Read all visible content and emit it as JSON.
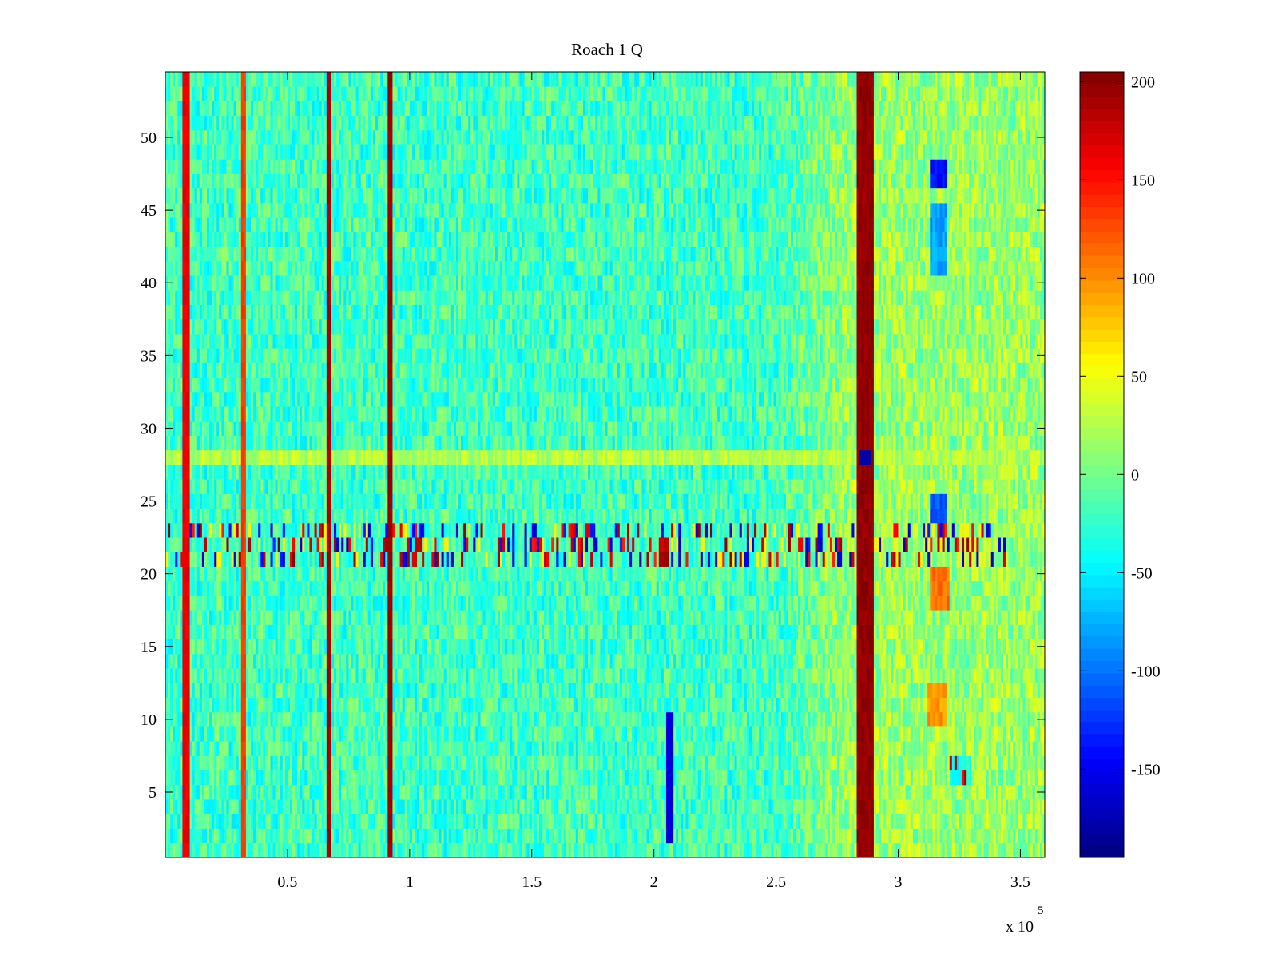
{
  "chart_data": {
    "type": "heatmap",
    "title": "Roach 1 Q",
    "xlabel": "",
    "ylabel": "",
    "x_exponent_label": "x 10",
    "x_exponent": "5",
    "xlim": [
      0,
      360000
    ],
    "ylim": [
      0.5,
      54.5
    ],
    "n_rows": 54,
    "n_columns": 360,
    "x_ticks": [
      50000,
      100000,
      150000,
      200000,
      250000,
      300000,
      350000
    ],
    "x_tick_labels": [
      "0.5",
      "1",
      "1.5",
      "2",
      "2.5",
      "3",
      "3.5"
    ],
    "y_ticks": [
      5,
      10,
      15,
      20,
      25,
      30,
      35,
      40,
      45,
      50
    ],
    "y_tick_labels": [
      "5",
      "10",
      "15",
      "20",
      "25",
      "30",
      "35",
      "40",
      "45",
      "50"
    ],
    "colorbar": {
      "colormap": "jet",
      "range": [
        -195,
        205
      ],
      "ticks": [
        200,
        150,
        100,
        50,
        0,
        -50,
        -100,
        -150
      ],
      "tick_labels": [
        "200",
        "150",
        "100",
        "50",
        "0",
        "-50",
        "-100",
        "-150"
      ]
    },
    "background_level": -20,
    "right_region_level": 15,
    "right_region_start_x": 250000,
    "vertical_bands": [
      {
        "x_start": 8000,
        "x_end": 9000,
        "value": 170
      },
      {
        "x_start": 31500,
        "x_end": 32500,
        "value": 140
      },
      {
        "x_start": 66500,
        "x_end": 67500,
        "value": 195
      },
      {
        "x_start": 91500,
        "x_end": 92500,
        "value": 200
      },
      {
        "x_start": 284000,
        "x_end": 289000,
        "value": 205
      }
    ],
    "horizontal_bands": [
      {
        "row_start": 28,
        "row_end": 28,
        "x_start": 0,
        "x_end": 360000,
        "value": 25
      },
      {
        "row_start": 21,
        "row_end": 23,
        "x_start": 0,
        "x_end": 345000,
        "value": "striped"
      }
    ],
    "patches": [
      {
        "row_start": 47,
        "row_end": 48,
        "x_start": 313000,
        "x_end": 320000,
        "value": -140
      },
      {
        "row_start": 41,
        "row_end": 45,
        "x_start": 313000,
        "x_end": 320000,
        "value": -80
      },
      {
        "row_start": 28,
        "row_end": 28,
        "x_start": 284000,
        "x_end": 289000,
        "value": -180
      },
      {
        "row_start": 24,
        "row_end": 25,
        "x_start": 313000,
        "x_end": 320000,
        "value": -110
      },
      {
        "row_start": 18,
        "row_end": 20,
        "x_start": 313000,
        "x_end": 321000,
        "value": 110
      },
      {
        "row_start": 10,
        "row_end": 12,
        "x_start": 312000,
        "x_end": 320000,
        "value": 95
      },
      {
        "row_start": 6,
        "row_end": 7,
        "x_start": 321000,
        "x_end": 330000,
        "value": "striped"
      },
      {
        "row_start": 2,
        "row_end": 10,
        "x_start": 206000,
        "x_end": 207000,
        "value": -160
      },
      {
        "row_start": 21,
        "row_end": 22,
        "x_start": 202000,
        "x_end": 206000,
        "value": 180
      }
    ]
  }
}
